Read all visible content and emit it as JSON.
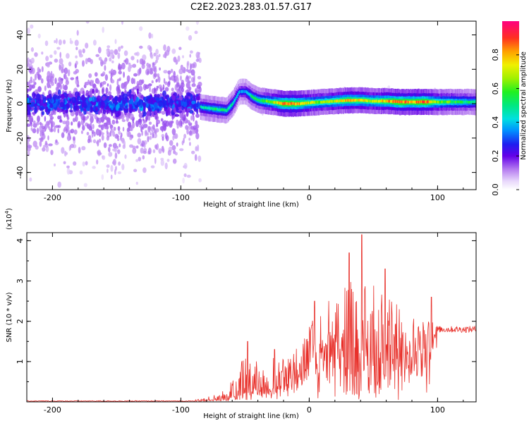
{
  "title": "C2E2.2023.283.01.57.G17",
  "chart_data": [
    {
      "type": "heatmap",
      "xlabel": "Height of straight line (km)",
      "ylabel": "Frequency (Hz)",
      "xlim": [
        -220,
        130
      ],
      "ylim": [
        -50,
        48
      ],
      "xticks": [
        -200,
        -100,
        0,
        100
      ],
      "yticks": [
        -40,
        -20,
        0,
        20,
        40
      ],
      "colorbar": {
        "label": "Normalized spectral amplitude",
        "range": [
          0.0,
          1.0
        ],
        "ticks": [
          0.0,
          0.2,
          0.4,
          0.6,
          0.8
        ],
        "tick_labels": [
          "0.0",
          "0.2",
          "0.4",
          "0.6",
          "0.8"
        ]
      },
      "noisy_region_x": [
        -220,
        -85
      ],
      "noisy_spread_hz": 48,
      "ridge": [
        {
          "x": -85,
          "f": -2,
          "amp": 0.45
        },
        {
          "x": -75,
          "f": -3,
          "amp": 0.5
        },
        {
          "x": -65,
          "f": -4,
          "amp": 0.5
        },
        {
          "x": -60,
          "f": 0,
          "amp": 0.45
        },
        {
          "x": -55,
          "f": 7,
          "amp": 0.35
        },
        {
          "x": -50,
          "f": 7,
          "amp": 0.4
        },
        {
          "x": -45,
          "f": 4,
          "amp": 0.5
        },
        {
          "x": -40,
          "f": 2,
          "amp": 0.55
        },
        {
          "x": -30,
          "f": 1,
          "amp": 0.65
        },
        {
          "x": -20,
          "f": 0,
          "amp": 0.9
        },
        {
          "x": -10,
          "f": 0,
          "amp": 0.85
        },
        {
          "x": 0,
          "f": 0.5,
          "amp": 0.7
        },
        {
          "x": 10,
          "f": 1,
          "amp": 0.65
        },
        {
          "x": 20,
          "f": 1.5,
          "amp": 0.7
        },
        {
          "x": 30,
          "f": 2,
          "amp": 0.8
        },
        {
          "x": 40,
          "f": 2,
          "amp": 0.75
        },
        {
          "x": 50,
          "f": 1.5,
          "amp": 0.7
        },
        {
          "x": 60,
          "f": 1.5,
          "amp": 0.8
        },
        {
          "x": 70,
          "f": 1,
          "amp": 0.9
        },
        {
          "x": 80,
          "f": 1,
          "amp": 0.85
        },
        {
          "x": 90,
          "f": 1,
          "amp": 0.9
        },
        {
          "x": 100,
          "f": 1,
          "amp": 0.65
        },
        {
          "x": 110,
          "f": 1,
          "amp": 0.6
        },
        {
          "x": 120,
          "f": 1,
          "amp": 0.55
        },
        {
          "x": 130,
          "f": 1,
          "amp": 0.5
        }
      ]
    },
    {
      "type": "line",
      "xlabel": "Height of straight line (km)",
      "ylabel": "SNR (10 * v/v)",
      "y_multiplier_label": "(x10",
      "y_multiplier_exp": "4",
      "y_multiplier_close": ")",
      "xlim": [
        -220,
        130
      ],
      "ylim": [
        0,
        4.2
      ],
      "xticks": [
        -200,
        -100,
        0,
        100
      ],
      "yticks": [
        1,
        2,
        3,
        4
      ],
      "color": "#e8302a",
      "envelope": [
        {
          "x": -220,
          "base": 0.02,
          "amp": 0.01
        },
        {
          "x": -90,
          "base": 0.02,
          "amp": 0.01
        },
        {
          "x": -70,
          "base": 0.05,
          "amp": 0.15
        },
        {
          "x": -60,
          "base": 0.15,
          "amp": 0.45
        },
        {
          "x": -50,
          "base": 0.25,
          "amp": 0.9
        },
        {
          "x": -40,
          "base": 0.3,
          "amp": 0.7
        },
        {
          "x": -30,
          "base": 0.35,
          "amp": 0.8
        },
        {
          "x": -20,
          "base": 0.5,
          "amp": 0.6
        },
        {
          "x": -10,
          "base": 0.8,
          "amp": 0.6
        },
        {
          "x": 0,
          "base": 1.2,
          "amp": 0.7
        },
        {
          "x": 10,
          "base": 1.4,
          "amp": 1.0
        },
        {
          "x": 20,
          "base": 1.5,
          "amp": 1.2
        },
        {
          "x": 30,
          "base": 1.4,
          "amp": 1.6
        },
        {
          "x": 40,
          "base": 1.5,
          "amp": 1.8
        },
        {
          "x": 50,
          "base": 1.4,
          "amp": 1.5
        },
        {
          "x": 60,
          "base": 1.3,
          "amp": 1.3
        },
        {
          "x": 70,
          "base": 1.2,
          "amp": 1.2
        },
        {
          "x": 80,
          "base": 1.3,
          "amp": 0.9
        },
        {
          "x": 90,
          "base": 1.3,
          "amp": 0.8
        },
        {
          "x": 95,
          "base": 1.5,
          "amp": 0.5
        },
        {
          "x": 100,
          "base": 1.8,
          "amp": 0.08
        },
        {
          "x": 130,
          "base": 1.8,
          "amp": 0.08
        }
      ],
      "peaks": [
        {
          "x": -48,
          "y": 1.5
        },
        {
          "x": -27,
          "y": 1.3
        },
        {
          "x": 2,
          "y": 1.9
        },
        {
          "x": 4,
          "y": 2.5
        },
        {
          "x": 31,
          "y": 3.7
        },
        {
          "x": 41,
          "y": 4.15
        },
        {
          "x": 59,
          "y": 3.3
        },
        {
          "x": 95,
          "y": 2.6
        }
      ]
    }
  ]
}
